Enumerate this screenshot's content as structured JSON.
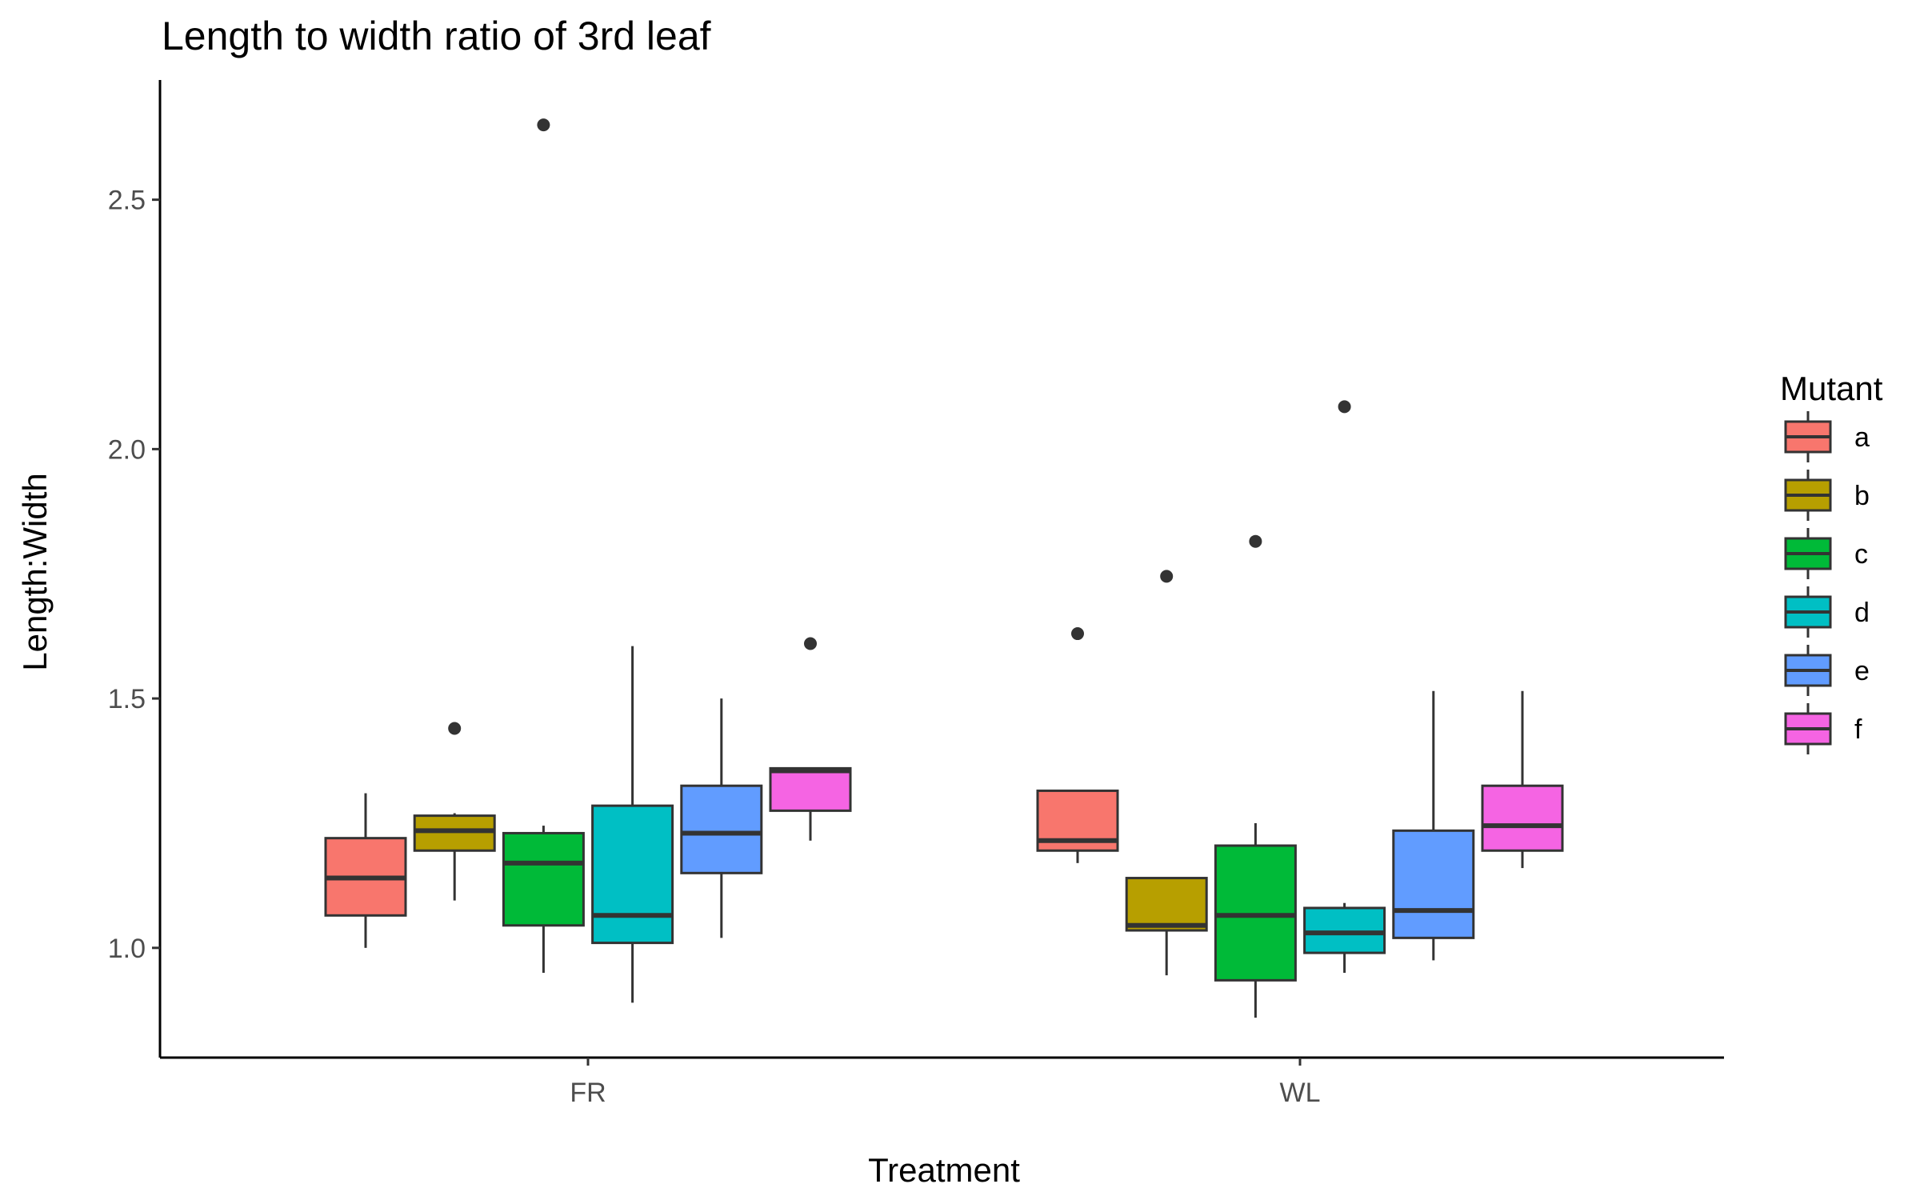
{
  "chart_data": {
    "type": "boxplot",
    "title": "Length to width ratio of 3rd leaf",
    "xlabel": "Treatment",
    "ylabel": "Length:Width",
    "categories": [
      "FR",
      "WL"
    ],
    "ylim": [
      0.78,
      2.74
    ],
    "yticks": [
      1.0,
      1.5,
      2.0,
      2.5
    ],
    "ytick_labels": [
      "1.0",
      "1.5",
      "2.0",
      "2.5"
    ],
    "grid": false,
    "legend": {
      "title": "Mutant",
      "position": "right"
    },
    "series": [
      {
        "name": "a",
        "color": "#F8766D",
        "boxes": [
          {
            "category": "FR",
            "whisker_low": 1.0,
            "q1": 1.065,
            "median": 1.14,
            "q3": 1.22,
            "whisker_high": 1.31,
            "outliers": []
          },
          {
            "category": "WL",
            "whisker_low": 1.17,
            "q1": 1.195,
            "median": 1.215,
            "q3": 1.315,
            "whisker_high": 1.315,
            "outliers": [
              1.63
            ]
          }
        ]
      },
      {
        "name": "b",
        "color": "#B79F00",
        "boxes": [
          {
            "category": "FR",
            "whisker_low": 1.095,
            "q1": 1.195,
            "median": 1.235,
            "q3": 1.265,
            "whisker_high": 1.27,
            "outliers": [
              1.44
            ]
          },
          {
            "category": "WL",
            "whisker_low": 0.945,
            "q1": 1.035,
            "median": 1.045,
            "q3": 1.14,
            "whisker_high": 1.14,
            "outliers": [
              1.745
            ]
          }
        ]
      },
      {
        "name": "c",
        "color": "#00BA38",
        "boxes": [
          {
            "category": "FR",
            "whisker_low": 0.95,
            "q1": 1.045,
            "median": 1.17,
            "q3": 1.23,
            "whisker_high": 1.245,
            "outliers": [
              2.65
            ]
          },
          {
            "category": "WL",
            "whisker_low": 0.86,
            "q1": 0.935,
            "median": 1.065,
            "q3": 1.205,
            "whisker_high": 1.25,
            "outliers": [
              1.815
            ]
          }
        ]
      },
      {
        "name": "d",
        "color": "#00BFC4",
        "boxes": [
          {
            "category": "FR",
            "whisker_low": 0.89,
            "q1": 1.01,
            "median": 1.065,
            "q3": 1.285,
            "whisker_high": 1.605,
            "outliers": []
          },
          {
            "category": "WL",
            "whisker_low": 0.95,
            "q1": 0.99,
            "median": 1.03,
            "q3": 1.08,
            "whisker_high": 1.09,
            "outliers": [
              2.085
            ]
          }
        ]
      },
      {
        "name": "e",
        "color": "#619CFF",
        "boxes": [
          {
            "category": "FR",
            "whisker_low": 1.02,
            "q1": 1.15,
            "median": 1.23,
            "q3": 1.325,
            "whisker_high": 1.5,
            "outliers": []
          },
          {
            "category": "WL",
            "whisker_low": 0.975,
            "q1": 1.02,
            "median": 1.075,
            "q3": 1.235,
            "whisker_high": 1.515,
            "outliers": []
          }
        ]
      },
      {
        "name": "f",
        "color": "#F564E3",
        "boxes": [
          {
            "category": "FR",
            "whisker_low": 1.215,
            "q1": 1.275,
            "median": 1.355,
            "q3": 1.36,
            "whisker_high": 1.36,
            "outliers": [
              1.61
            ]
          },
          {
            "category": "WL",
            "whisker_low": 1.16,
            "q1": 1.195,
            "median": 1.245,
            "q3": 1.325,
            "whisker_high": 1.515,
            "outliers": []
          }
        ]
      }
    ]
  }
}
